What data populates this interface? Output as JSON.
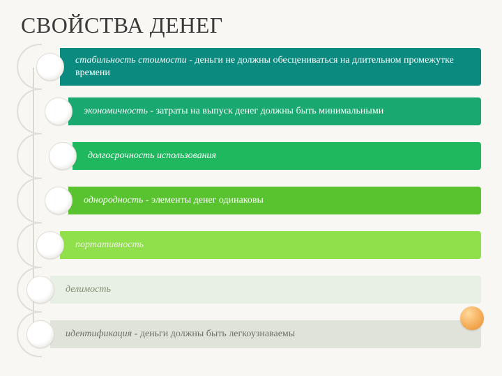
{
  "title": "СВОЙСТВА ДЕНЕГ",
  "items": [
    {
      "term": "стабильность стоимости",
      "sep": " - ",
      "desc": "деньги не должны обесцениваться на длительном промежутке времени",
      "color": "#0b8a80"
    },
    {
      "term": "экономичность",
      "sep": " - ",
      "desc": "затраты на выпуск денег должны быть минимальными",
      "color": "#19a86f"
    },
    {
      "term": "долгосрочность использования",
      "sep": "",
      "desc": "",
      "color": "#1fb85e"
    },
    {
      "term": "однородность",
      "sep": " - ",
      "desc": "элементы денег одинаковы",
      "color": "#58c32f"
    },
    {
      "term": "портативность",
      "sep": "",
      "desc": "",
      "color": "#8fe04a"
    },
    {
      "term": "делимость",
      "sep": "",
      "desc": "",
      "color": "#e8efe4",
      "text": "#7d8a6f"
    },
    {
      "term": "идентификация",
      "sep": " - ",
      "desc": "деньги должны быть легкоузнаваемы",
      "color": "#dfe3d9",
      "text": "#6f6f66"
    }
  ],
  "background": "#f8f7f3",
  "title_color": "#3a3a3a",
  "title_fontsize": 32,
  "item_fontsize": 14,
  "bullet_fill": "#ffffff",
  "bullet_border": "#e0ded7",
  "accent_dot_color": "#f2a24a"
}
